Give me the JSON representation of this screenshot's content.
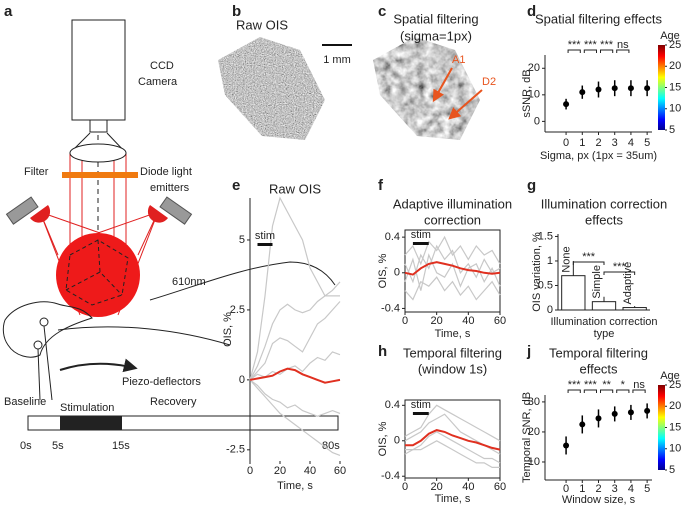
{
  "panels": [
    "a",
    "b",
    "c",
    "d",
    "e",
    "f",
    "g",
    "h",
    "j"
  ],
  "diagram": {
    "camera": [
      "CCD",
      "Camera"
    ],
    "filter": "Filter",
    "emitters": [
      "Diode light",
      "emitters"
    ],
    "wavelength": "610nm",
    "deflectors": "Piezo-deflectors",
    "phases": [
      "Baseline",
      "Stimulation",
      "Recovery"
    ],
    "times": [
      "0s",
      "5s",
      "15s",
      "80s"
    ]
  },
  "images": [
    {
      "title": "Raw OIS",
      "scale": "1 mm"
    },
    {
      "title": [
        "Spatial filtering",
        "(sigma=1px)"
      ],
      "labels": [
        "A1",
        "D2"
      ]
    }
  ],
  "chart_data": [
    {
      "type": "errorbar",
      "title": [
        "Spatial filtering effects"
      ],
      "xlabel": "Sigma, px (1px = 35um)",
      "ylabel": "sSNR, dB",
      "x": [
        0,
        1,
        2,
        3,
        4,
        5
      ],
      "values": [
        6.5,
        11,
        12,
        12.5,
        12.5,
        12.5
      ],
      "errors": [
        2,
        2.5,
        3,
        3,
        3,
        3
      ],
      "color": "#000000",
      "xlim": [
        -1.3,
        5.3
      ],
      "xticks": [
        0,
        1,
        2,
        3,
        4,
        5
      ],
      "ylim": [
        -4,
        25
      ],
      "yticks": [
        0,
        10,
        20
      ],
      "significance": [
        {
          "label": "***",
          "from": 0,
          "to": 1
        },
        {
          "label": "***",
          "from": 1,
          "to": 2
        },
        {
          "label": "***",
          "from": 2,
          "to": 3
        },
        {
          "label": "ns",
          "from": 3,
          "to": 4
        }
      ],
      "colorbar": {
        "label": "Age",
        "lim": [
          5,
          25
        ],
        "ticks": [
          5,
          10,
          15,
          20,
          25
        ]
      }
    },
    {
      "type": "line",
      "title": [
        "Raw OIS"
      ],
      "xlabel": "Time, s",
      "ylabel": "OIS, %",
      "stim": "stim",
      "stim_range": [
        5,
        15
      ],
      "x": [
        0,
        5,
        10,
        15,
        20,
        25,
        30,
        35,
        40,
        45,
        50,
        55,
        60
      ],
      "xlim": [
        0,
        60
      ],
      "xticks": [
        0,
        20,
        40,
        60
      ],
      "ylim": [
        -2.9,
        6.5
      ],
      "yticks": [
        5,
        2.5,
        0,
        -2.5
      ],
      "series": [
        {
          "color": "#c8c8c8",
          "values": [
            0,
            1,
            3,
            5.5,
            6.5,
            6,
            5.5,
            5,
            4,
            3.5,
            3,
            3,
            3
          ]
        },
        {
          "color": "#c8c8c8",
          "values": [
            0,
            0.5,
            1.2,
            2,
            2.5,
            2.7,
            2.5,
            2.4,
            2.5,
            2.8,
            3,
            3.2,
            3.5
          ]
        },
        {
          "color": "#c8c8c8",
          "values": [
            0,
            -0.3,
            -0.6,
            -0.9,
            -1.2,
            -1.4,
            -1.6,
            -1.8,
            -2,
            -2.2,
            -2.4,
            -2.6,
            -2.7
          ]
        },
        {
          "color": "#c8c8c8",
          "values": [
            0,
            0.3,
            0.6,
            1.3,
            1.5,
            1.4,
            1.2,
            1,
            1.5,
            2,
            2.2,
            2.5,
            2.8
          ]
        },
        {
          "color": "#c8c8c8",
          "values": [
            0,
            -0.2,
            -0.5,
            -0.7,
            -0.8,
            -1,
            -0.9,
            -1.1,
            -1.2,
            -1.3,
            -1.2,
            -1.1,
            -1.2
          ]
        },
        {
          "color": "#c8c8c8",
          "values": [
            0,
            0.2,
            0.1,
            0.3,
            0.2,
            0.4,
            0.5,
            0.3,
            0.6,
            0.8,
            0.7,
            1,
            0.9
          ]
        },
        {
          "color": "#e03020",
          "values": [
            0,
            0.05,
            0.1,
            0.15,
            0.3,
            0.4,
            0.35,
            0.2,
            0.1,
            0,
            -0.1,
            -0.05,
            0
          ]
        }
      ]
    },
    {
      "type": "line",
      "title": [
        "Adaptive illumination",
        "correction"
      ],
      "xlabel": "Time, s",
      "ylabel": "OIS, %",
      "stim": "stim",
      "stim_range": [
        5,
        15
      ],
      "x": [
        0,
        5,
        10,
        15,
        20,
        25,
        30,
        35,
        40,
        45,
        50,
        55,
        60
      ],
      "xlim": [
        0,
        60
      ],
      "xticks": [
        0,
        20,
        40,
        60
      ],
      "ylim": [
        -0.44,
        0.48
      ],
      "yticks": [
        0.4,
        0,
        -0.4
      ],
      "frame": true,
      "series": [
        {
          "color": "#c8c8c8",
          "values": [
            0.2,
            0.3,
            0.1,
            0.35,
            0.25,
            0.4,
            0.2,
            0.3,
            0.15,
            0.3,
            0.2,
            0.25,
            0.1
          ]
        },
        {
          "color": "#c8c8c8",
          "values": [
            -0.2,
            -0.3,
            -0.1,
            -0.15,
            -0.05,
            -0.2,
            -0.1,
            -0.25,
            -0.15,
            -0.3,
            -0.2,
            -0.1,
            -0.25
          ]
        },
        {
          "color": "#c8c8c8",
          "values": [
            0.1,
            -0.1,
            0.2,
            0.05,
            0.3,
            0.15,
            0.25,
            0,
            0.1,
            -0.05,
            0.15,
            0,
            0.05
          ]
        },
        {
          "color": "#c8c8c8",
          "values": [
            -0.1,
            0.15,
            -0.2,
            0.2,
            0,
            -0.05,
            0.1,
            -0.15,
            0.05,
            0.1,
            -0.1,
            0.05,
            -0.15
          ]
        },
        {
          "color": "#e03020",
          "values": [
            0,
            -0.02,
            0.05,
            0.1,
            0.12,
            0.1,
            0.08,
            0.05,
            0.03,
            0.02,
            0,
            -0.01,
            0
          ]
        }
      ]
    },
    {
      "type": "bar",
      "title": [
        "Illumination correction",
        "effects"
      ],
      "xlabel": [
        "Illumination correction",
        "type"
      ],
      "ylabel": "OIS variation, %",
      "categories": [
        "None",
        "Simple",
        "Adaptive"
      ],
      "values": [
        0.7,
        0.17,
        0.05
      ],
      "errors": [
        0.3,
        0.1,
        0.03
      ],
      "color": "#ffffff",
      "ylim": [
        0,
        1.55
      ],
      "yticks": [
        0,
        0.5,
        1,
        1.5
      ],
      "significance": [
        {
          "label": "***",
          "from": 0,
          "to": 1
        },
        {
          "label": "***",
          "from": 1,
          "to": 2
        }
      ]
    },
    {
      "type": "line",
      "title": [
        "Temporal filtering",
        "(window 1s)"
      ],
      "xlabel": "Time, s",
      "ylabel": "OIS, %",
      "stim": "stim",
      "stim_range": [
        5,
        15
      ],
      "x": [
        0,
        5,
        10,
        15,
        20,
        25,
        30,
        35,
        40,
        45,
        50,
        55,
        60
      ],
      "xlim": [
        0,
        60
      ],
      "xticks": [
        0,
        20,
        40,
        60
      ],
      "ylim": [
        -0.42,
        0.46
      ],
      "yticks": [
        0.4,
        0,
        -0.4
      ],
      "frame": true,
      "series": [
        {
          "color": "#c8c8c8",
          "values": [
            0.05,
            0.1,
            0.15,
            0.3,
            0.4,
            0.35,
            0.3,
            0.25,
            0.2,
            0.15,
            0.1,
            0.05,
            0
          ]
        },
        {
          "color": "#c8c8c8",
          "values": [
            -0.15,
            -0.1,
            -0.1,
            -0.05,
            0,
            -0.05,
            -0.1,
            -0.15,
            -0.2,
            -0.25,
            -0.25,
            -0.3,
            -0.3
          ]
        },
        {
          "color": "#c8c8c8",
          "values": [
            0,
            0.05,
            0.1,
            0.2,
            0.25,
            0.3,
            0.2,
            0.1,
            0.05,
            0,
            -0.05,
            -0.1,
            -0.15
          ]
        },
        {
          "color": "#c8c8c8",
          "values": [
            -0.1,
            -0.1,
            -0.05,
            0.05,
            0.1,
            0.05,
            0,
            -0.05,
            -0.1,
            -0.15,
            -0.2,
            -0.2,
            -0.25
          ]
        },
        {
          "color": "#e03020",
          "values": [
            -0.05,
            -0.05,
            0,
            0.08,
            0.12,
            0.1,
            0.06,
            0.03,
            0,
            -0.02,
            -0.05,
            -0.08,
            -0.1
          ]
        }
      ]
    },
    {
      "type": "errorbar",
      "title": [
        "Temporal filtering",
        "effects"
      ],
      "xlabel": "Window size, s",
      "ylabel": "Temporal SNR, dB",
      "x": [
        0,
        1,
        2,
        3,
        4,
        5
      ],
      "values": [
        15.5,
        22.5,
        24.5,
        26,
        26.5,
        27
      ],
      "errors": [
        3,
        3,
        3,
        2.5,
        2.5,
        2.5
      ],
      "color": "#000000",
      "xlim": [
        -1.3,
        5.3
      ],
      "xticks": [
        0,
        1,
        2,
        3,
        4,
        5
      ],
      "ylim": [
        4,
        32.3
      ],
      "yticks": [
        10,
        20,
        30
      ],
      "significance": [
        {
          "label": "***",
          "from": 0,
          "to": 1
        },
        {
          "label": "***",
          "from": 1,
          "to": 2
        },
        {
          "label": "**",
          "from": 2,
          "to": 3
        },
        {
          "label": "*",
          "from": 3,
          "to": 4
        },
        {
          "label": "ns",
          "from": 4,
          "to": 5
        }
      ],
      "colorbar": {
        "label": "Age",
        "lim": [
          5,
          25
        ],
        "ticks": [
          5,
          10,
          15,
          20,
          25
        ]
      }
    }
  ]
}
